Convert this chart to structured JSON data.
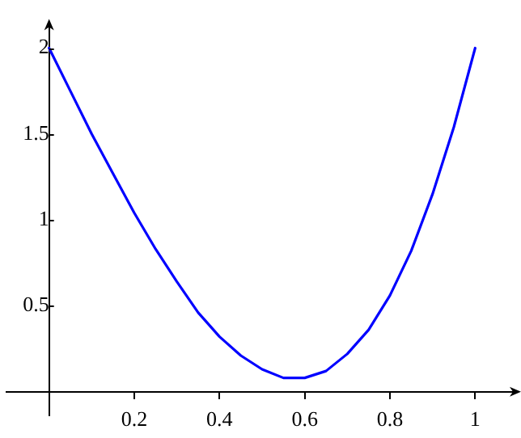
{
  "chart_data": {
    "type": "line",
    "x": [
      0,
      0.05,
      0.1,
      0.15,
      0.2,
      0.25,
      0.3,
      0.35,
      0.4,
      0.45,
      0.5,
      0.55,
      0.577,
      0.6,
      0.65,
      0.7,
      0.75,
      0.8,
      0.85,
      0.9,
      0.95,
      1
    ],
    "series": [
      {
        "color": "#0000ff",
        "values": [
          2,
          1.75,
          1.5,
          1.27,
          1.04,
          0.83,
          0.64,
          0.46,
          0.32,
          0.21,
          0.13,
          0.08,
          0.08,
          0.08,
          0.12,
          0.22,
          0.36,
          0.56,
          0.82,
          1.15,
          1.54,
          2
        ]
      }
    ],
    "xlim": [
      -0.1,
      1.1
    ],
    "ylim": [
      -0.14,
      2.15
    ],
    "xticks": [
      0.2,
      0.4,
      0.6,
      0.8,
      1
    ],
    "yticks": [
      0.5,
      1,
      1.5,
      2
    ],
    "grid": false,
    "legend": false,
    "marker": "none",
    "line_style": "solid"
  }
}
